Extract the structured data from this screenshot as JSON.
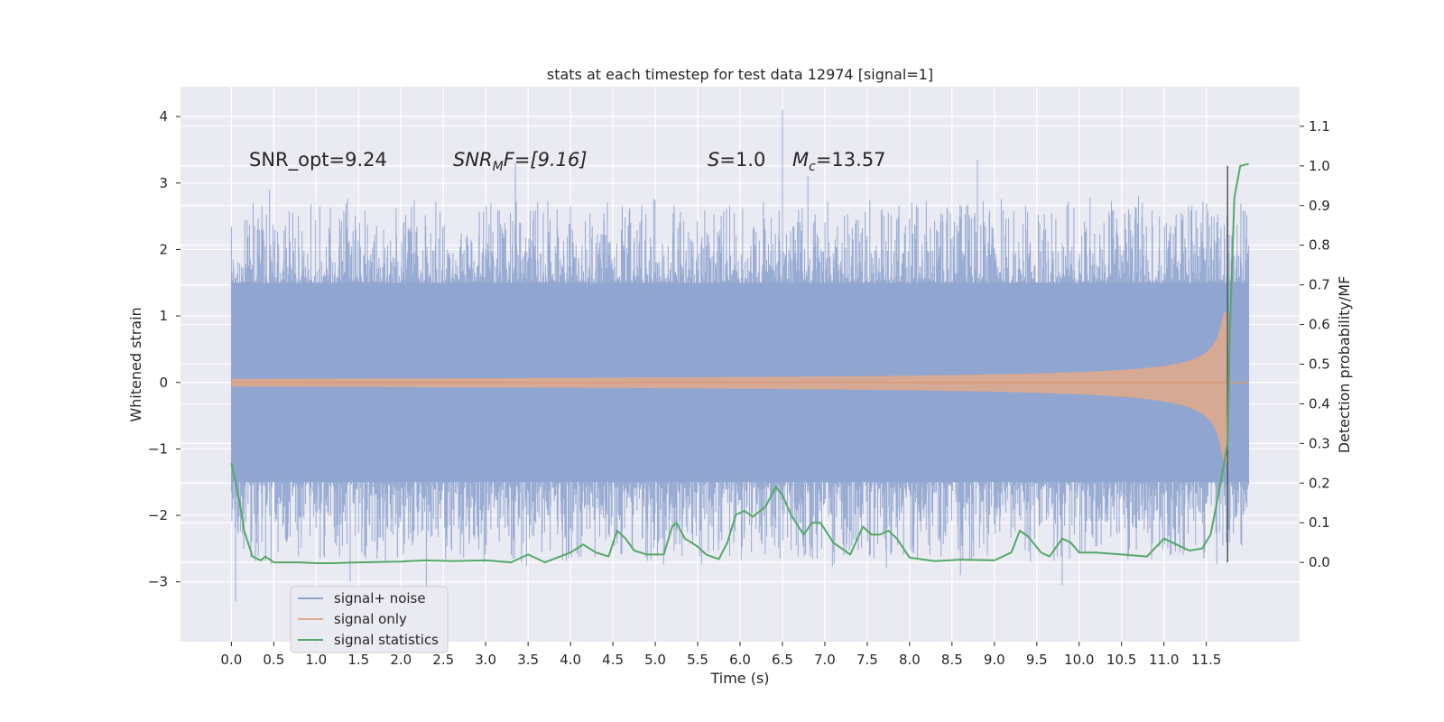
{
  "chart_data": {
    "type": "line",
    "title": "stats at each timestep for test data 12974 [signal=1]",
    "xlabel": "Time (s)",
    "ylabel": "Whitened strain",
    "ylabel_right": "Detection probability/MF",
    "xlim": [
      -0.6,
      12.6
    ],
    "ylim": [
      -3.9,
      4.45
    ],
    "ylim_right": [
      -0.2,
      1.2
    ],
    "x_ticks": [
      "0.0",
      "0.5",
      "1.0",
      "1.5",
      "2.0",
      "2.5",
      "3.0",
      "3.5",
      "4.0",
      "4.5",
      "5.0",
      "5.5",
      "6.0",
      "6.5",
      "7.0",
      "7.5",
      "8.0",
      "8.5",
      "9.0",
      "9.5",
      "10.0",
      "10.5",
      "11.0",
      "11.5"
    ],
    "y_ticks": [
      "−3",
      "−2",
      "−1",
      "0",
      "1",
      "2",
      "3",
      "4"
    ],
    "y_ticks_right": [
      "0.0",
      "0.1",
      "0.2",
      "0.3",
      "0.4",
      "0.5",
      "0.6",
      "0.7",
      "0.8",
      "0.9",
      "1.0",
      "1.1"
    ],
    "grid": true,
    "legend_position": "lower-left",
    "annotations": {
      "snr_opt": "SNR_opt=9.24",
      "snr_mf_sym": "SNR",
      "snr_mf_sub": "M",
      "snr_mf_rest": "F=[9.16]",
      "s_sym": "S",
      "s_rest": "=1.0",
      "mc_sym": "M",
      "mc_sub": "c",
      "mc_rest": "=13.57"
    },
    "vertical_line_x": 11.75,
    "series": [
      {
        "name": "signal+ noise",
        "color": "#8fa4cf",
        "axis": "left",
        "kind": "noise_band",
        "x_range": [
          0.0,
          12.0
        ],
        "typical_range": [
          -1.5,
          1.5
        ],
        "peaks": [
          [
            0.45,
            2.9
          ],
          [
            3.35,
            3.3
          ],
          [
            6.5,
            4.1
          ],
          [
            6.8,
            3.1
          ],
          [
            8.8,
            3.35
          ],
          [
            10.7,
            2.8
          ],
          [
            0.05,
            -3.3
          ],
          [
            1.4,
            -3.0
          ],
          [
            2.3,
            -3.4
          ],
          [
            8.6,
            -2.9
          ],
          [
            9.8,
            -3.05
          ]
        ]
      },
      {
        "name": "signal only",
        "color": "#dd8452",
        "axis": "left",
        "kind": "chirp",
        "x_range": [
          0.0,
          12.0
        ],
        "merger_time": 11.75,
        "peak_amplitude": 1.05
      },
      {
        "name": "signal statistics",
        "color": "#55a868",
        "axis": "right",
        "kind": "line",
        "x": [
          0.0,
          0.1,
          0.15,
          0.25,
          0.3,
          0.35,
          0.4,
          0.5,
          0.6,
          0.8,
          1.0,
          1.2,
          1.5,
          2.0,
          2.3,
          2.6,
          3.0,
          3.3,
          3.5,
          3.7,
          4.0,
          4.15,
          4.3,
          4.45,
          4.55,
          4.65,
          4.75,
          4.9,
          5.1,
          5.2,
          5.25,
          5.35,
          5.5,
          5.6,
          5.75,
          5.85,
          5.95,
          6.05,
          6.15,
          6.3,
          6.42,
          6.5,
          6.6,
          6.75,
          6.85,
          6.95,
          7.1,
          7.3,
          7.45,
          7.55,
          7.65,
          7.75,
          7.85,
          8.0,
          8.3,
          8.6,
          9.0,
          9.2,
          9.3,
          9.4,
          9.55,
          9.65,
          9.8,
          9.9,
          10.0,
          10.2,
          10.5,
          10.8,
          11.0,
          11.1,
          11.3,
          11.45,
          11.55,
          11.65,
          11.75,
          11.78,
          11.83,
          11.9,
          12.0
        ],
        "y": [
          0.25,
          0.15,
          0.08,
          0.015,
          0.01,
          0.005,
          0.015,
          0.0,
          0.0,
          0.0,
          -0.002,
          -0.002,
          0.0,
          0.002,
          0.005,
          0.003,
          0.005,
          0.0,
          0.02,
          0.0,
          0.025,
          0.045,
          0.025,
          0.015,
          0.08,
          0.06,
          0.03,
          0.02,
          0.02,
          0.09,
          0.1,
          0.06,
          0.04,
          0.02,
          0.008,
          0.05,
          0.12,
          0.13,
          0.115,
          0.14,
          0.19,
          0.17,
          0.12,
          0.07,
          0.1,
          0.1,
          0.05,
          0.02,
          0.09,
          0.07,
          0.07,
          0.08,
          0.06,
          0.012,
          0.003,
          0.007,
          0.005,
          0.025,
          0.08,
          0.065,
          0.025,
          0.015,
          0.06,
          0.05,
          0.025,
          0.025,
          0.02,
          0.015,
          0.06,
          0.05,
          0.03,
          0.035,
          0.07,
          0.18,
          0.3,
          0.6,
          0.92,
          1.0,
          1.005
        ]
      }
    ]
  }
}
